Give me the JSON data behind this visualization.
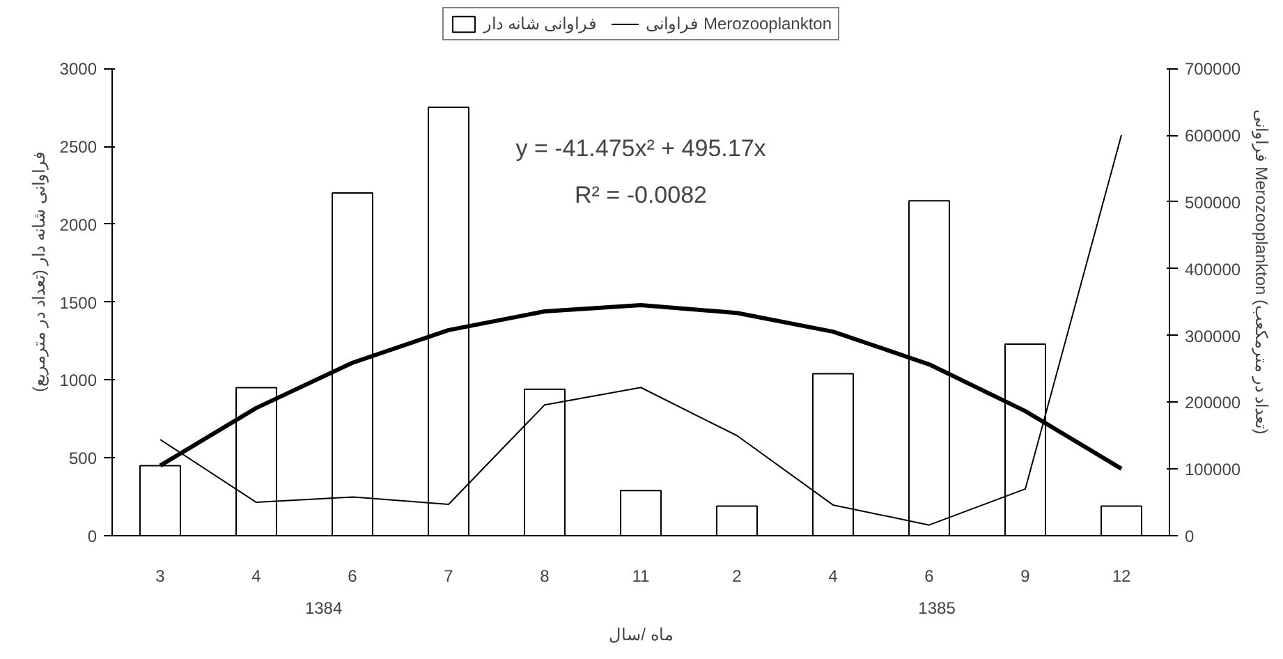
{
  "chart_data": {
    "type": "bar",
    "categories": [
      "3",
      "4",
      "6",
      "7",
      "8",
      "11",
      "2",
      "4",
      "6",
      "9",
      "12"
    ],
    "xlabel": "ماه /سال",
    "ylabel": "فراوانی شانه دار (تعداد در مترمربع)",
    "y2label": "فراوانی Merozooplankton (تعداد در مترمکعب)",
    "series": [
      {
        "name": "فراوانی شانه دار",
        "color": "#ffffff",
        "values": [
          450,
          950,
          2200,
          2750,
          940,
          290,
          190,
          1040,
          2150,
          1230,
          190
        ]
      },
      {
        "name": "فراوانی Merozooplankton",
        "type": "line",
        "axis": "y2",
        "color": "#000000",
        "values": [
          144000,
          50000,
          58000,
          47000,
          196000,
          222000,
          150000,
          46000,
          16000,
          70000,
          600000
        ]
      },
      {
        "type": "line",
        "color": "#000000",
        "values": [
          450,
          820,
          1110,
          1320,
          1440,
          1480,
          1430,
          1310,
          1100,
          800,
          430
        ]
      }
    ],
    "ylim": [
      0,
      3000
    ],
    "yticks": [
      0,
      500,
      1000,
      1500,
      2000,
      2500,
      3000
    ],
    "y2lim": [
      0,
      700000
    ],
    "y2ticks": [
      0,
      100000,
      200000,
      300000,
      400000,
      500000,
      600000,
      700000
    ],
    "annotations": [
      "y = -41.475x² + 495.17x",
      "R² = -0.0082",
      "1384",
      "1385"
    ],
    "legend": "top",
    "grid": false
  }
}
